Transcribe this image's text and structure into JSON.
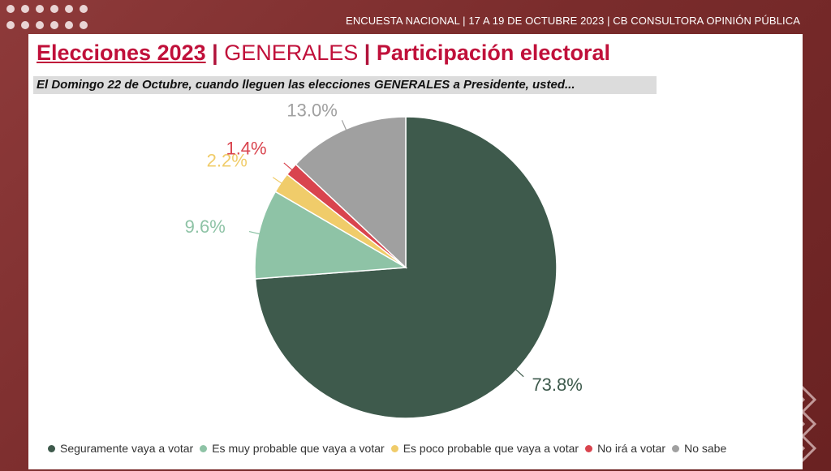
{
  "header": {
    "meta": "ENCUESTA NACIONAL | 17 A 19 DE OCTUBRE 2023 | CB CONSULTORA OPINIÓN PÚBLICA"
  },
  "title": {
    "part1": "Elecciones 2023",
    "sep1": " | ",
    "part2": "GENERALES",
    "sep2": " | ",
    "part3": "Participación electoral"
  },
  "question": "El Domingo 22 de Octubre, cuando lleguen las elecciones GENERALES a Presidente, usted...",
  "chart_data": {
    "type": "pie",
    "title": "",
    "slices": [
      {
        "name": "Seguramente vaya a votar",
        "value": 73.8,
        "label": "73.8%",
        "color": "#3e5a4c"
      },
      {
        "name": "Es muy probable que vaya a votar",
        "value": 9.6,
        "label": "9.6%",
        "color": "#8ec3a6"
      },
      {
        "name": "Es poco probable que vaya a votar",
        "value": 2.2,
        "label": "2.2%",
        "color": "#f0cc6a"
      },
      {
        "name": "No irá a votar",
        "value": 1.4,
        "label": "1.4%",
        "color": "#d9444e"
      },
      {
        "name": "No sabe",
        "value": 13.0,
        "label": "13.0%",
        "color": "#a0a0a0"
      }
    ],
    "legend_position": "bottom"
  }
}
